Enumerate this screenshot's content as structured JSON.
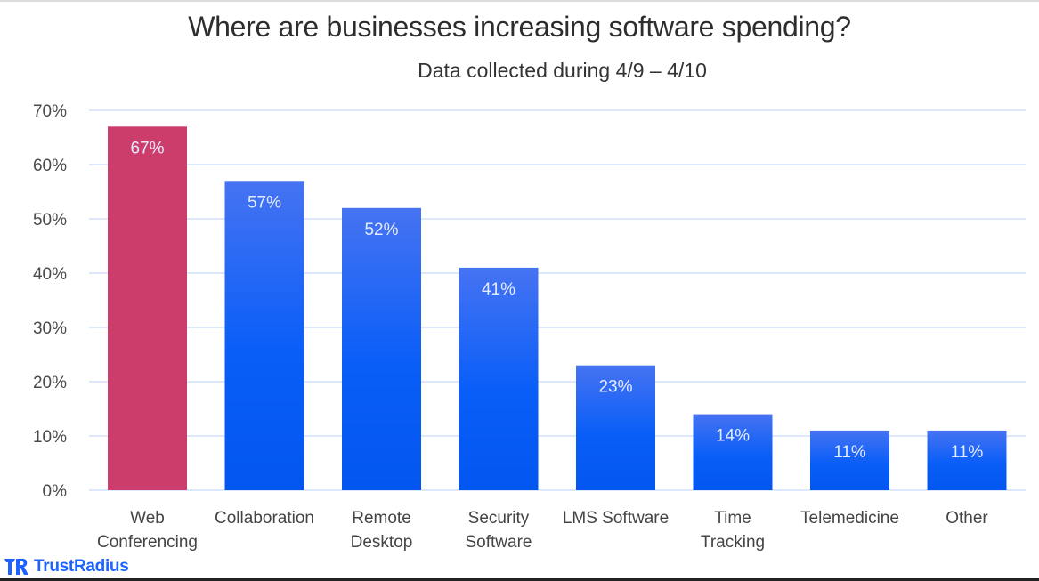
{
  "colors": {
    "highlight": "#cc3d6c",
    "bar_top": "#4673f2",
    "bar_bottom": "#0356f0",
    "gridline": "#d3e0fb",
    "brand": "#1e63ff"
  },
  "brand": {
    "name": "TrustRadius",
    "icon": "trustradius-logo-icon"
  },
  "chart_data": {
    "type": "bar",
    "title": "Where are businesses increasing software spending?",
    "subtitle": "Data collected during 4/9 – 4/10",
    "xlabel": "",
    "ylabel": "",
    "ylim": [
      0,
      70
    ],
    "yticks": [
      0,
      10,
      20,
      30,
      40,
      50,
      60,
      70
    ],
    "ytick_labels": [
      "0%",
      "10%",
      "20%",
      "30%",
      "40%",
      "50%",
      "60%",
      "70%"
    ],
    "grid": true,
    "legend": "none",
    "categories": [
      [
        "Web",
        "Conferencing"
      ],
      [
        "Collaboration"
      ],
      [
        "Remote",
        "Desktop"
      ],
      [
        "Security",
        "Software"
      ],
      [
        "LMS Software"
      ],
      [
        "Time",
        "Tracking"
      ],
      [
        "Telemedicine"
      ],
      [
        "Other"
      ]
    ],
    "values": [
      67,
      57,
      52,
      41,
      23,
      14,
      11,
      11
    ],
    "data_labels": [
      "67%",
      "57%",
      "52%",
      "41%",
      "23%",
      "14%",
      "11%",
      "11%"
    ],
    "highlighted_index": 0
  }
}
